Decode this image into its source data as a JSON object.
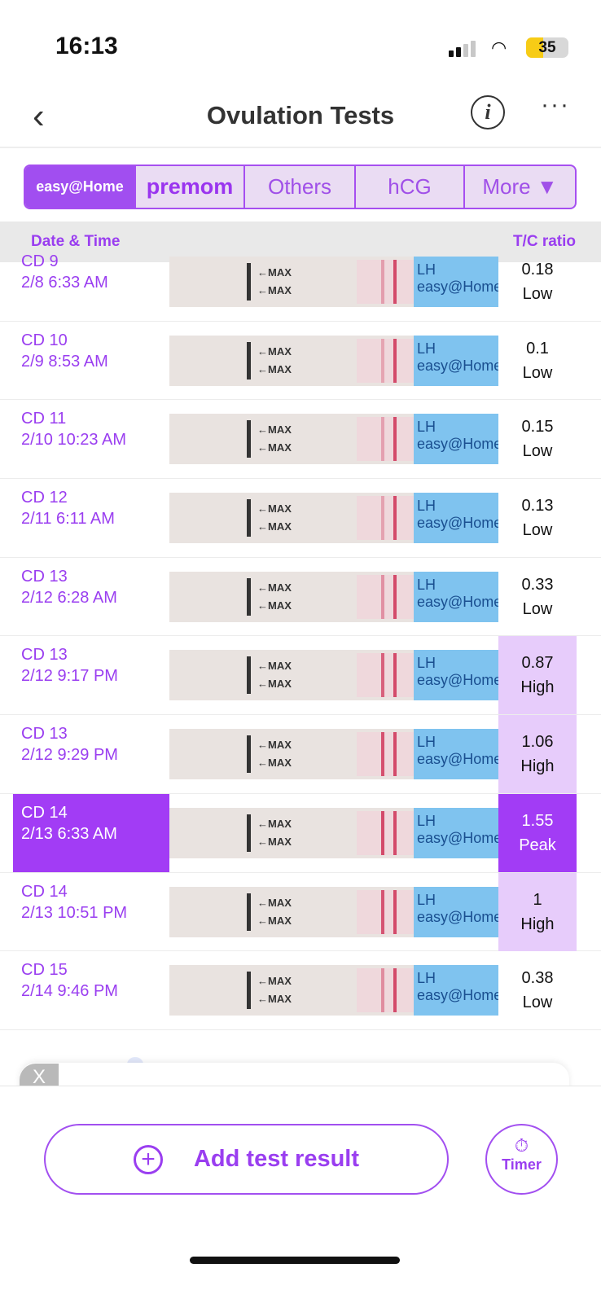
{
  "status_bar": {
    "time": "16:13",
    "battery": "35"
  },
  "nav": {
    "title": "Ovulation Tests"
  },
  "brands": [
    {
      "label": "easy@Home"
    },
    {
      "label": "premom"
    },
    {
      "label": "Others"
    },
    {
      "label": "hCG"
    },
    {
      "label": "More ▼"
    }
  ],
  "table_header": {
    "date_time": "Date & Time",
    "ratio": "T/C ratio"
  },
  "rows": [
    {
      "cd": "CD 9",
      "datetime": "2/8 6:33 AM",
      "ratio": "0.18",
      "level": "Low"
    },
    {
      "cd": "CD 10",
      "datetime": "2/9 8:53 AM",
      "ratio": "0.1",
      "level": "Low"
    },
    {
      "cd": "CD 11",
      "datetime": "2/10 10:23 AM",
      "ratio": "0.15",
      "level": "Low"
    },
    {
      "cd": "CD 12",
      "datetime": "2/11 6:11 AM",
      "ratio": "0.13",
      "level": "Low"
    },
    {
      "cd": "CD 13",
      "datetime": "2/12 6:28 AM",
      "ratio": "0.33",
      "level": "Low"
    },
    {
      "cd": "CD 13",
      "datetime": "2/12 9:17 PM",
      "ratio": "0.87",
      "level": "High"
    },
    {
      "cd": "CD 13",
      "datetime": "2/12 9:29 PM",
      "ratio": "1.06",
      "level": "High"
    },
    {
      "cd": "CD 14",
      "datetime": "2/13 6:33 AM",
      "ratio": "1.55",
      "level": "Peak"
    },
    {
      "cd": "CD 14",
      "datetime": "2/13 10:51 PM",
      "ratio": "1",
      "level": "High"
    },
    {
      "cd": "CD 15",
      "datetime": "2/14 9:46 PM",
      "ratio": "0.38",
      "level": "Low"
    }
  ],
  "strip": {
    "max": "←MAX",
    "lh": "LH easy@Home"
  },
  "actions": {
    "add": "Add test result",
    "timer": "Timer",
    "close": "X"
  },
  "colors": {
    "accent": "#9a3ef0",
    "peak": "#a23cf5",
    "high": "#e7ccfb"
  }
}
